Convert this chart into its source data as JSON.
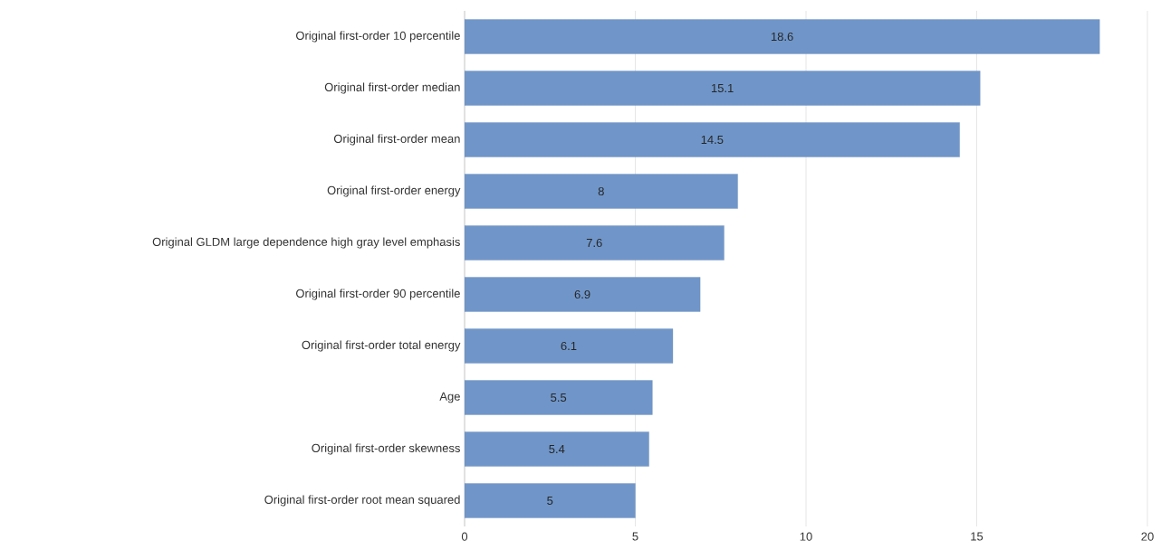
{
  "chart_data": {
    "type": "bar",
    "orientation": "horizontal",
    "categories": [
      "Original first-order 10 percentile",
      "Original first-order median",
      "Original first-order mean",
      "Original first-order energy",
      "Original GLDM large dependence high gray level emphasis",
      "Original first-order 90 percentile",
      "Original first-order total energy",
      "Age",
      "Original first-order skewness",
      "Original first-order root mean squared"
    ],
    "values": [
      18.6,
      15.1,
      14.5,
      8,
      7.6,
      6.9,
      6.1,
      5.5,
      5.4,
      5
    ],
    "color": "#7096c9",
    "xlim": [
      0,
      20
    ],
    "xticks": [
      0,
      5,
      10,
      15,
      20
    ],
    "grid": "x",
    "data_labels": true
  }
}
